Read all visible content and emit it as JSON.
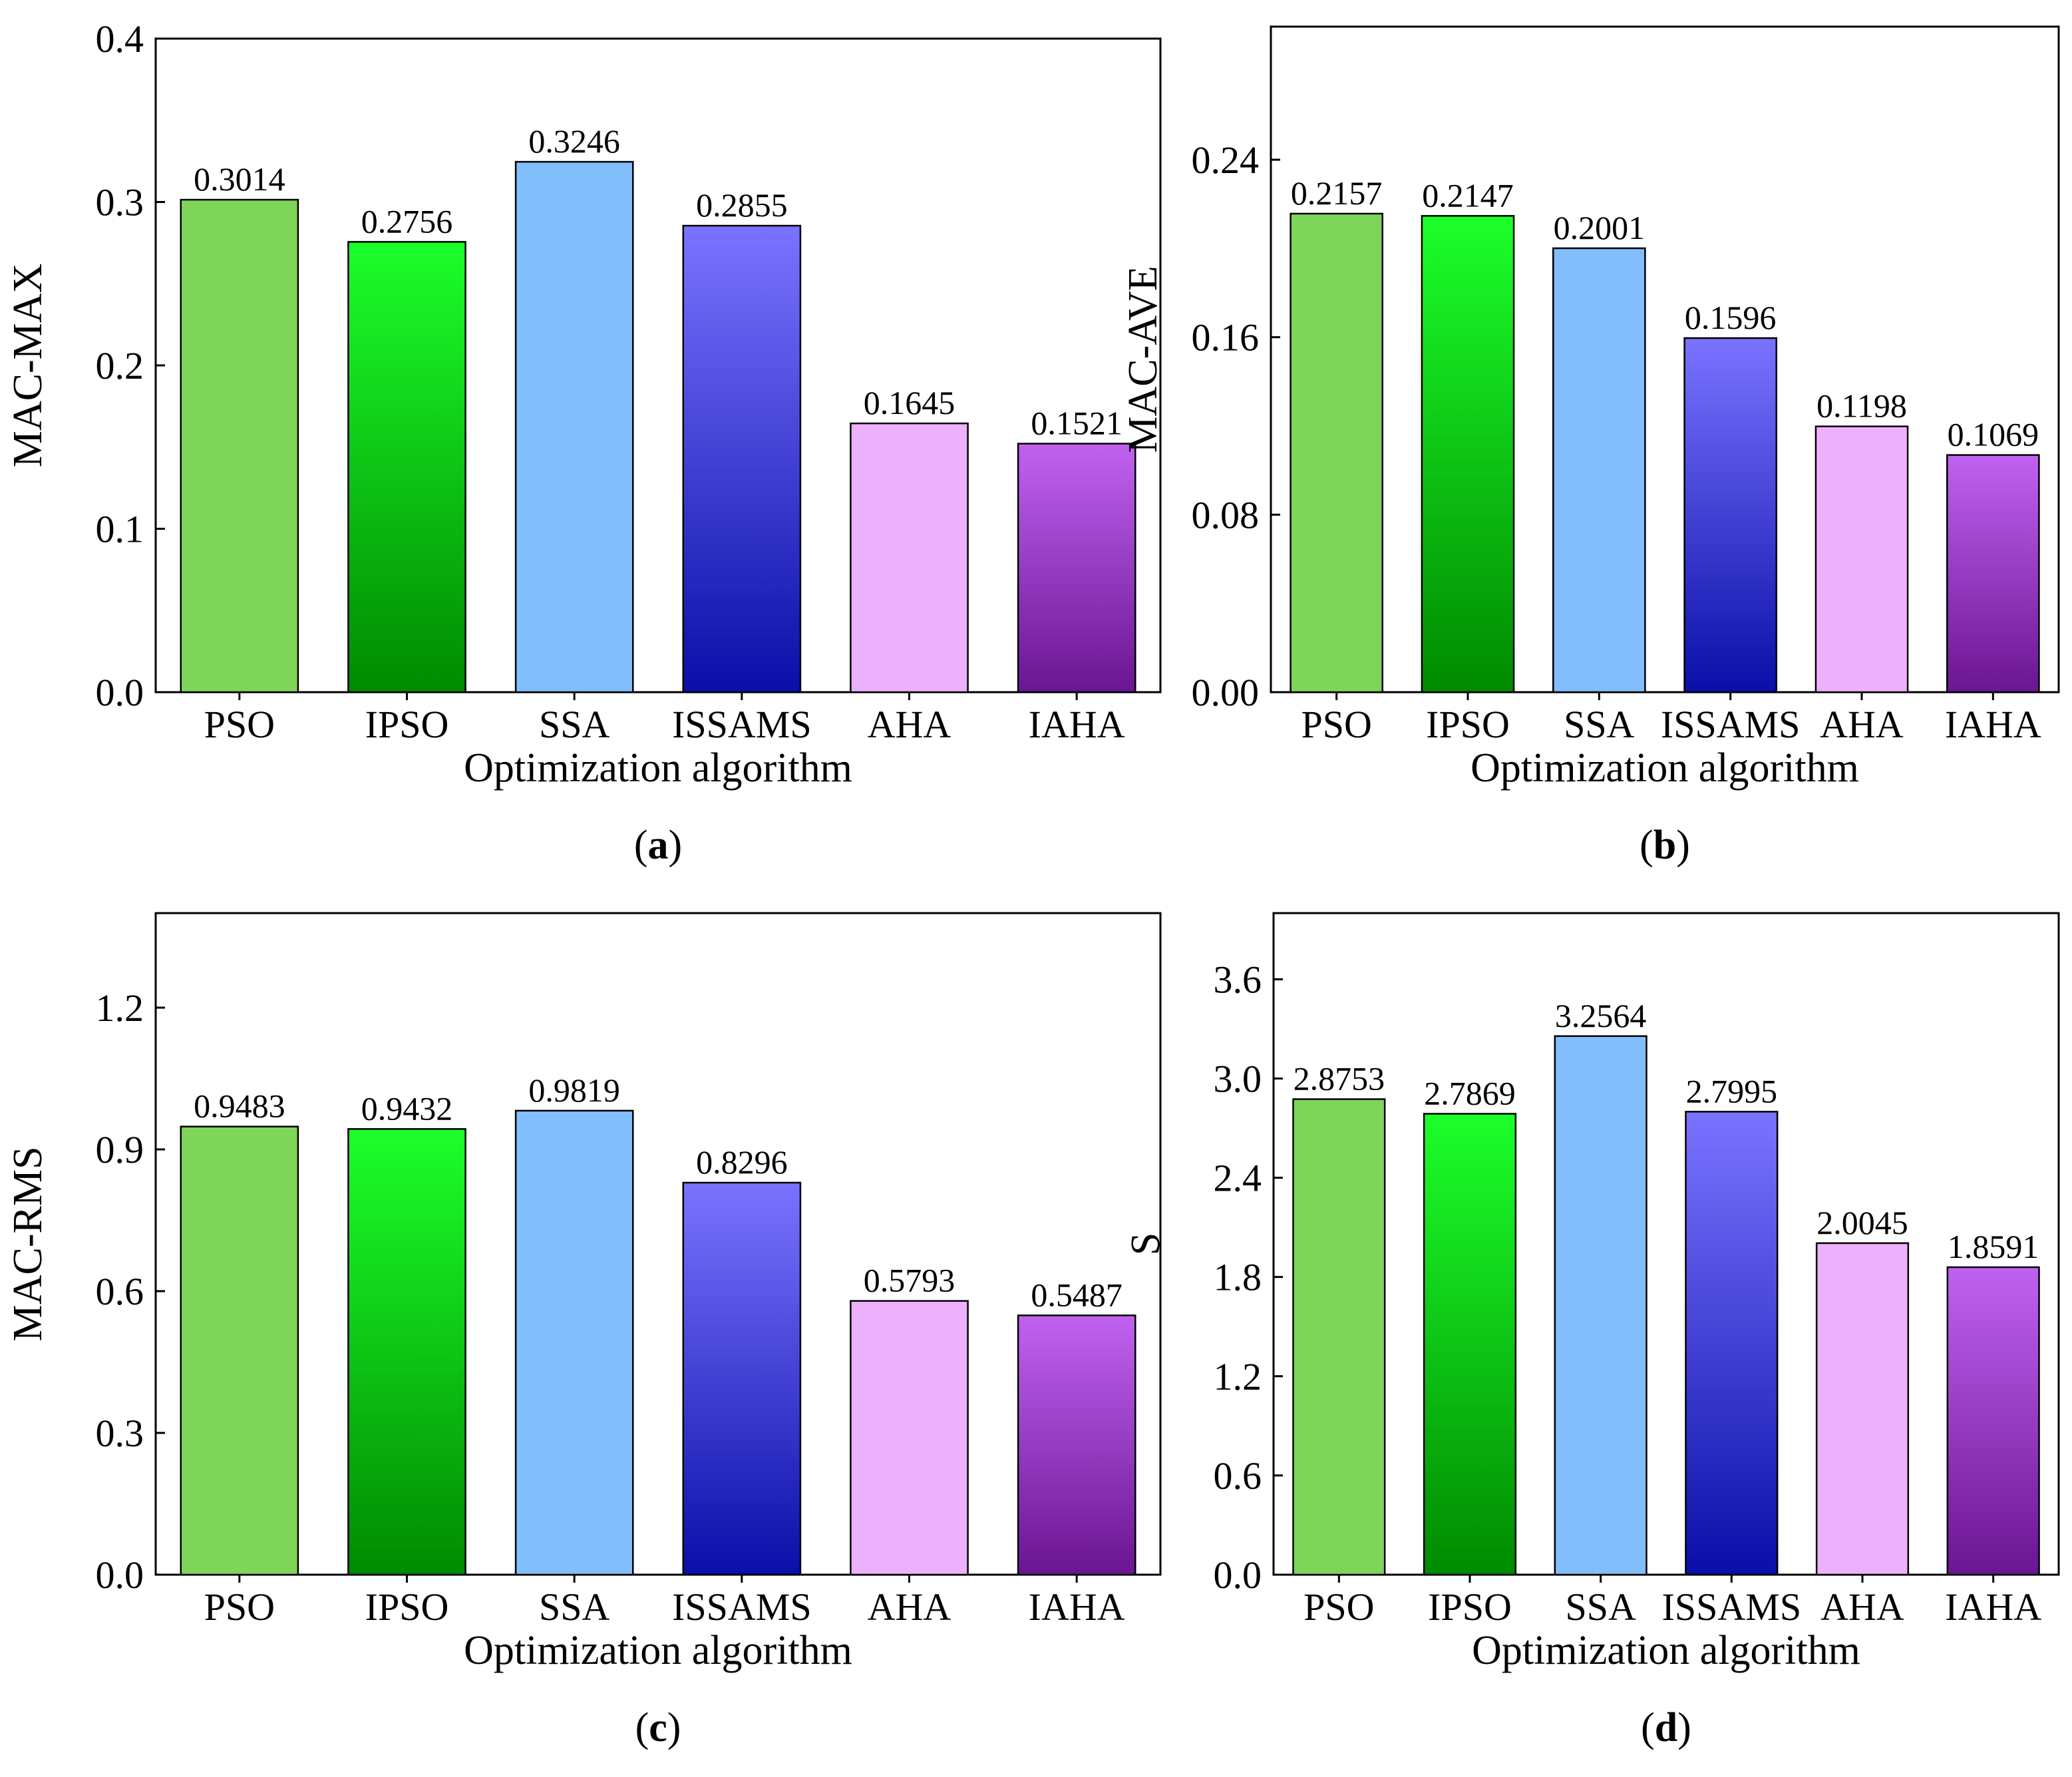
{
  "chart_data": [
    {
      "type": "bar",
      "panel_label": "a",
      "categories": [
        "PSO",
        "IPSO",
        "SSA",
        "ISSAMS",
        "AHA",
        "IAHA"
      ],
      "values": [
        0.3014,
        0.2756,
        0.3246,
        0.2855,
        0.1645,
        0.1521
      ],
      "value_labels": [
        "0.3014",
        "0.2756",
        "0.3246",
        "0.2855",
        "0.1645",
        "0.1521"
      ],
      "xlabel": "Optimization algorithm",
      "ylabel": "MAC-MAX",
      "ylim": [
        0,
        0.4
      ],
      "yticks": [
        "0.0",
        "0.1",
        "0.2",
        "0.3",
        "0.4"
      ]
    },
    {
      "type": "bar",
      "panel_label": "b",
      "categories": [
        "PSO",
        "IPSO",
        "SSA",
        "ISSAMS",
        "AHA",
        "IAHA"
      ],
      "values": [
        0.2157,
        0.2147,
        0.2001,
        0.1596,
        0.1198,
        0.1069
      ],
      "value_labels": [
        "0.2157",
        "0.2147",
        "0.2001",
        "0.1596",
        "0.1198",
        "0.1069"
      ],
      "xlabel": "Optimization algorithm",
      "ylabel": "MAC-AVE",
      "ylim": [
        0,
        0.3
      ],
      "yticks": [
        "0.00",
        "0.08",
        "0.16",
        "0.24"
      ]
    },
    {
      "type": "bar",
      "panel_label": "c",
      "categories": [
        "PSO",
        "IPSO",
        "SSA",
        "ISSAMS",
        "AHA",
        "IAHA"
      ],
      "values": [
        0.9483,
        0.9432,
        0.9819,
        0.8296,
        0.5793,
        0.5487
      ],
      "value_labels": [
        "0.9483",
        "0.9432",
        "0.9819",
        "0.8296",
        "0.5793",
        "0.5487"
      ],
      "xlabel": "Optimization algorithm",
      "ylabel": "MAC-RMS",
      "ylim": [
        0,
        1.4
      ],
      "yticks": [
        "0.0",
        "0.3",
        "0.6",
        "0.9",
        "1.2"
      ]
    },
    {
      "type": "bar",
      "panel_label": "d",
      "categories": [
        "PSO",
        "IPSO",
        "SSA",
        "ISSAMS",
        "AHA",
        "IAHA"
      ],
      "values": [
        2.8753,
        2.7869,
        3.2564,
        2.7995,
        2.0045,
        1.8591
      ],
      "value_labels": [
        "2.8753",
        "2.7869",
        "3.2564",
        "2.7995",
        "2.0045",
        "1.8591"
      ],
      "xlabel": "Optimization algorithm",
      "ylabel": "S",
      "ylim": [
        0,
        4.0
      ],
      "yticks": [
        "0.0",
        "0.6",
        "1.2",
        "1.8",
        "2.4",
        "3.0",
        "3.6"
      ]
    }
  ],
  "bar_colors": [
    {
      "top": "#7fd45a",
      "bottom": "#7fd45a"
    },
    {
      "top": "#1cff2a",
      "bottom": "#008a00"
    },
    {
      "top": "#82bdfc",
      "bottom": "#82bdfc"
    },
    {
      "top": "#7a73ff",
      "bottom": "#0a0fa8"
    },
    {
      "top": "#edb1fb",
      "bottom": "#edb1fb"
    },
    {
      "top": "#c062f0",
      "bottom": "#6a1592"
    }
  ]
}
